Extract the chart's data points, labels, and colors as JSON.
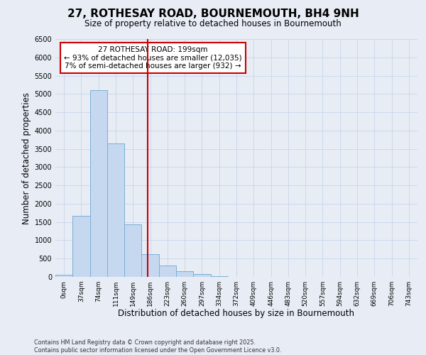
{
  "title": "27, ROTHESAY ROAD, BOURNEMOUTH, BH4 9NH",
  "subtitle": "Size of property relative to detached houses in Bournemouth",
  "xlabel": "Distribution of detached houses by size in Bournemouth",
  "ylabel": "Number of detached properties",
  "bin_labels": [
    "0sqm",
    "37sqm",
    "74sqm",
    "111sqm",
    "149sqm",
    "186sqm",
    "223sqm",
    "260sqm",
    "297sqm",
    "334sqm",
    "372sqm",
    "409sqm",
    "446sqm",
    "483sqm",
    "520sqm",
    "557sqm",
    "594sqm",
    "632sqm",
    "669sqm",
    "706sqm",
    "743sqm"
  ],
  "bar_values": [
    60,
    1670,
    5100,
    3650,
    1440,
    630,
    310,
    150,
    80,
    20,
    5,
    0,
    0,
    0,
    0,
    0,
    0,
    0,
    0,
    0,
    0
  ],
  "bar_color": "#c5d8f0",
  "bar_edge_color": "#7aafd4",
  "vline_x_bin": 5.37,
  "annotation_title": "27 ROTHESAY ROAD: 199sqm",
  "annotation_line1": "← 93% of detached houses are smaller (12,035)",
  "annotation_line2": "7% of semi-detached houses are larger (932) →",
  "annotation_box_color": "#ffffff",
  "annotation_border_color": "#cc0000",
  "vline_color": "#cc0000",
  "grid_color": "#c8d4e8",
  "background_color": "#e8edf5",
  "footer_line1": "Contains HM Land Registry data © Crown copyright and database right 2025.",
  "footer_line2": "Contains public sector information licensed under the Open Government Licence v3.0.",
  "ylim": [
    0,
    6500
  ],
  "yticks": [
    0,
    500,
    1000,
    1500,
    2000,
    2500,
    3000,
    3500,
    4000,
    4500,
    5000,
    5500,
    6000,
    6500
  ]
}
